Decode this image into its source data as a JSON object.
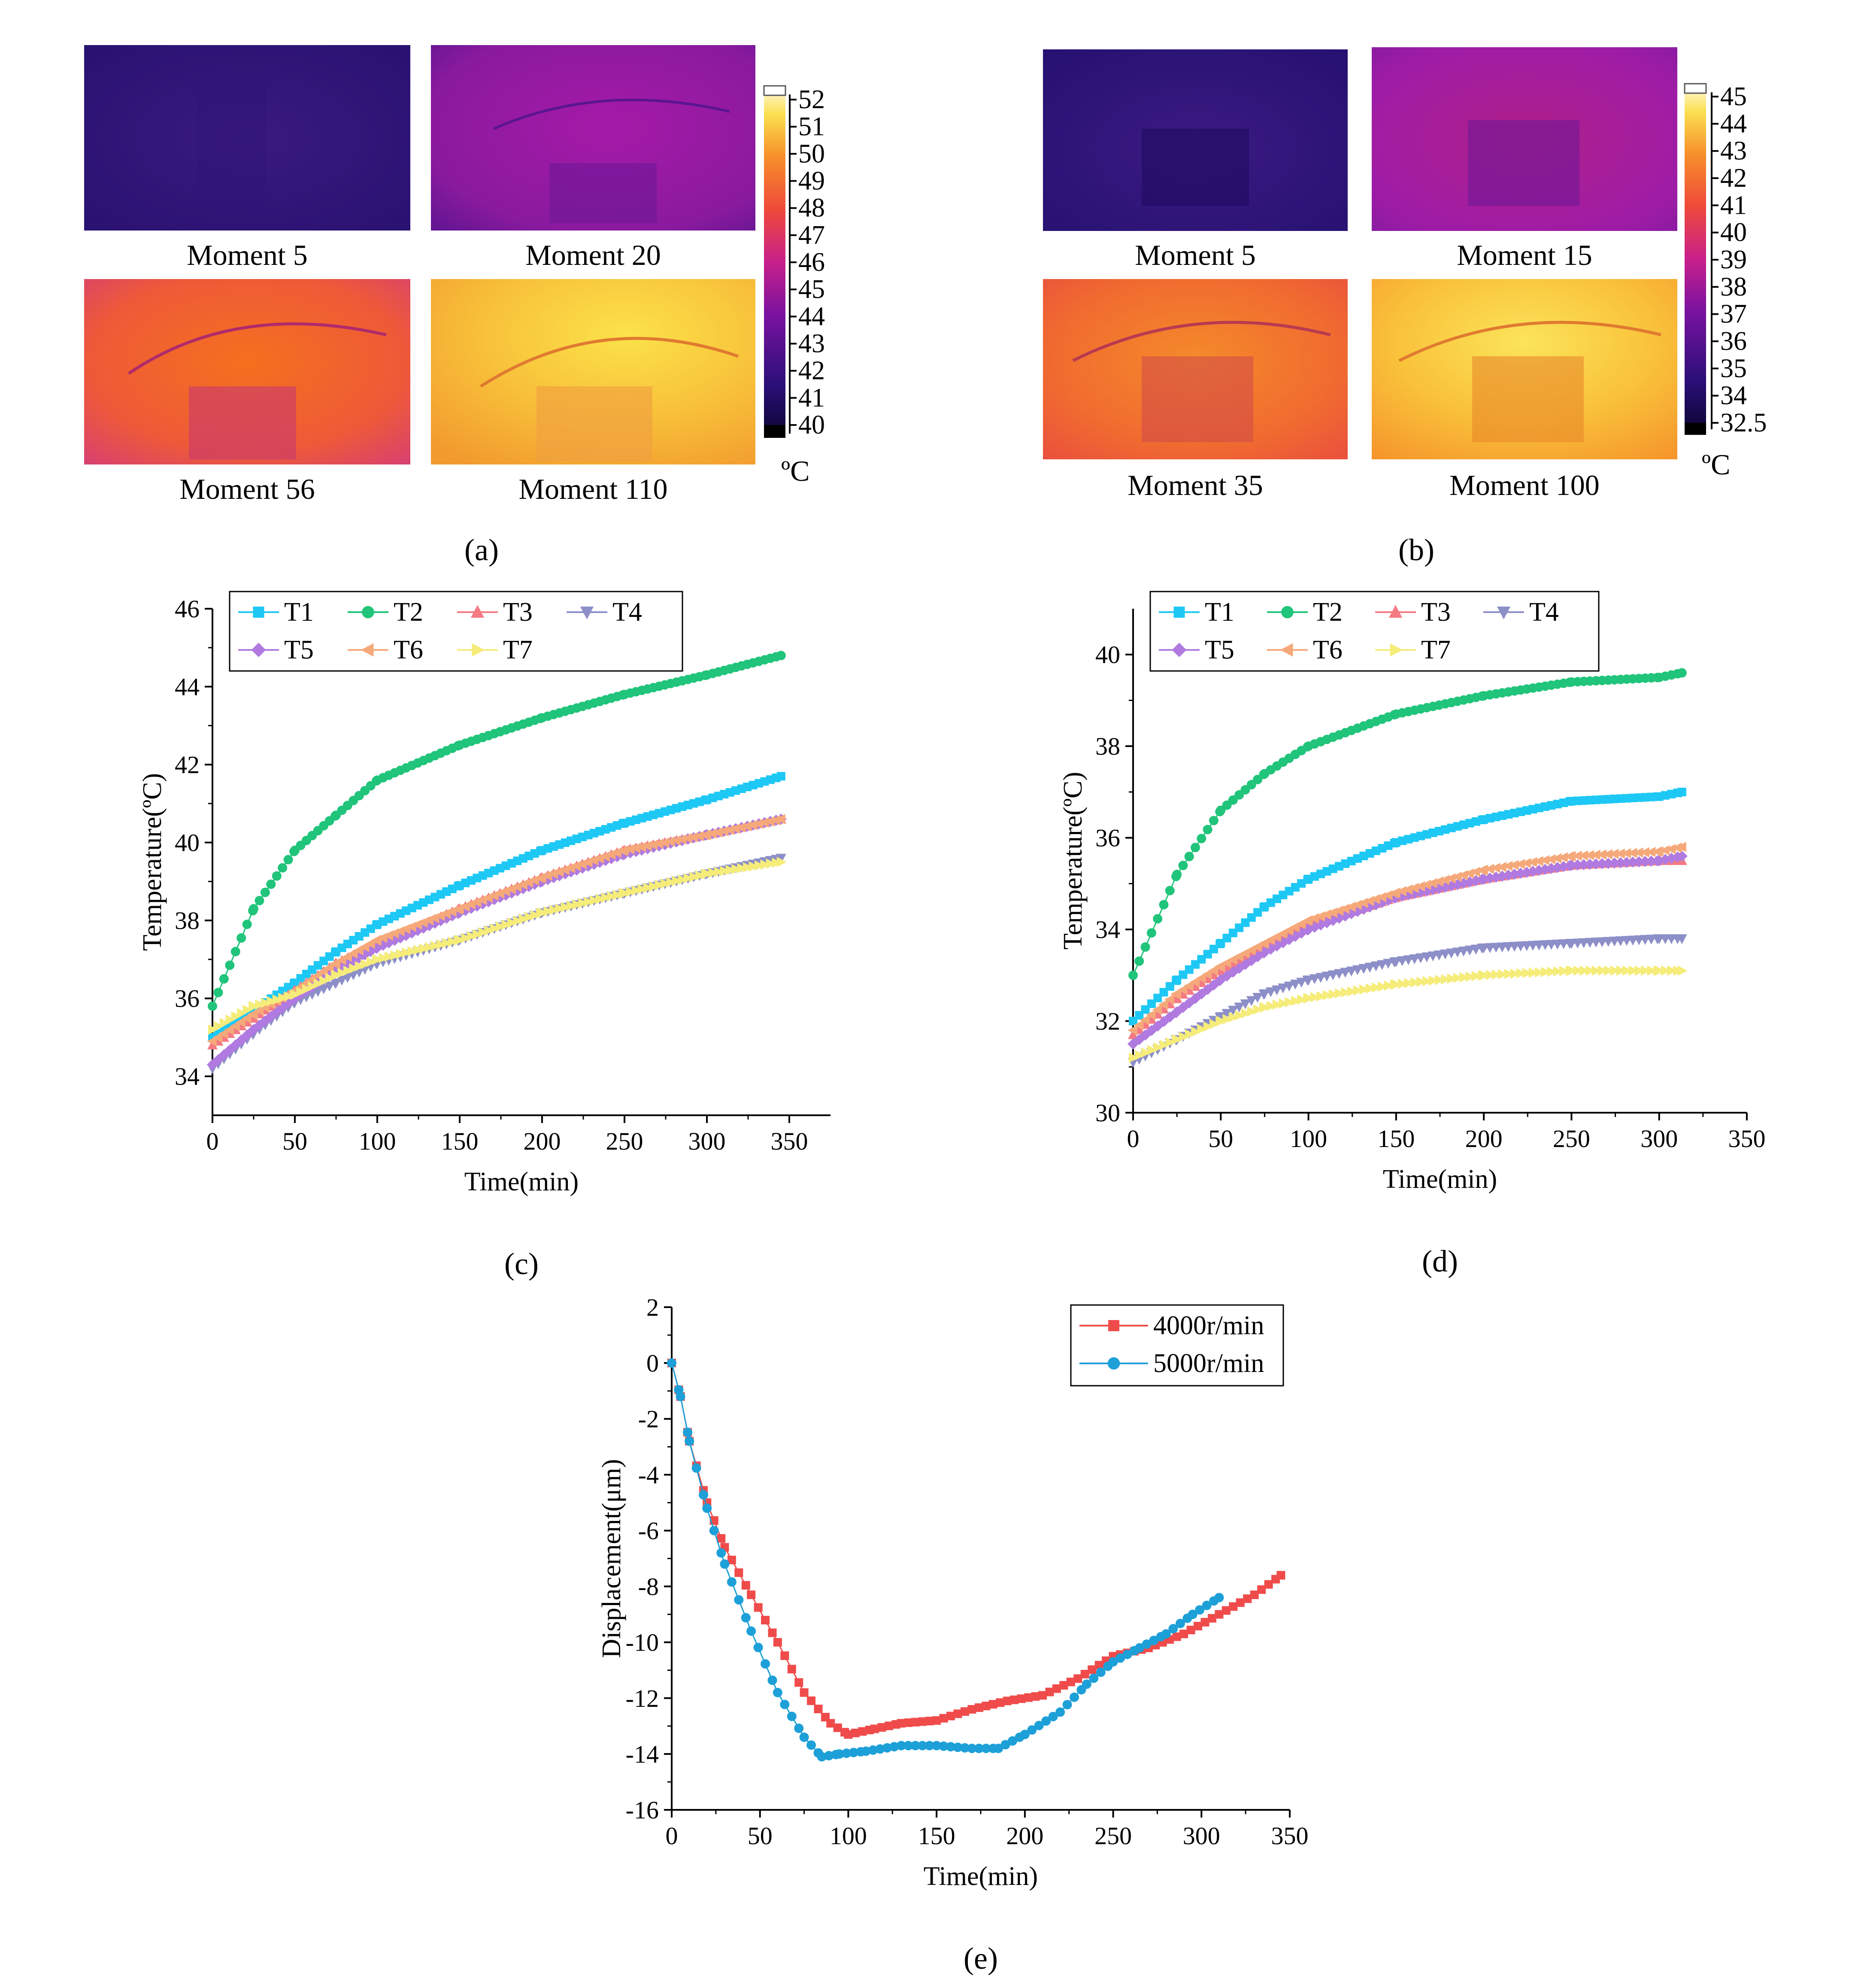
{
  "thermal_a": {
    "panel_label": "(a)",
    "captions": [
      "Moment  5",
      "Moment 20",
      "Moment 56",
      "Moment 110"
    ],
    "colorbar_ticks": [
      "52",
      "51",
      "50",
      "49",
      "48",
      "47",
      "46",
      "45",
      "44",
      "43",
      "42",
      "41",
      "40"
    ],
    "unit": "ºC"
  },
  "thermal_b": {
    "panel_label": "(b)",
    "captions": [
      "Moment  5",
      "Moment 15",
      "Moment 35",
      "Moment 100"
    ],
    "colorbar_ticks": [
      "45",
      "44",
      "43",
      "42",
      "41",
      "40",
      "39",
      "38",
      "37",
      "36",
      "35",
      "34",
      "32.5"
    ],
    "unit": "ºC"
  },
  "colors": {
    "T1": "#1ec8f5",
    "T2": "#20c47a",
    "T3": "#f47a84",
    "T4": "#8c8fc8",
    "T5": "#b07ae0",
    "T6": "#f5a97a",
    "T7": "#f5ec7a",
    "rpm4000": "#f04b4b",
    "rpm5000": "#1da0d8"
  },
  "chart_data": [
    {
      "id": "c",
      "panel_label": "(c)",
      "type": "line",
      "xlabel": "Time(min)",
      "ylabel": "Temperature(ºC)",
      "xlim": [
        0,
        375
      ],
      "ylim": [
        33,
        46
      ],
      "xticks": [
        0,
        50,
        100,
        150,
        200,
        250,
        300,
        350
      ],
      "yticks": [
        34,
        36,
        38,
        40,
        42,
        44,
        46
      ],
      "legend_position": "top-left",
      "x": [
        0,
        25,
        50,
        75,
        100,
        150,
        200,
        250,
        300,
        345
      ],
      "series": [
        {
          "name": "T1",
          "marker": "square",
          "values": [
            35.0,
            35.7,
            36.4,
            37.2,
            37.9,
            38.9,
            39.8,
            40.5,
            41.1,
            41.7
          ]
        },
        {
          "name": "T2",
          "marker": "circle",
          "values": [
            35.8,
            38.3,
            39.8,
            40.7,
            41.6,
            42.5,
            43.2,
            43.8,
            44.3,
            44.8
          ]
        },
        {
          "name": "T3",
          "marker": "triangle-up",
          "values": [
            34.8,
            35.5,
            36.2,
            36.9,
            37.4,
            38.3,
            39.1,
            39.8,
            40.2,
            40.6
          ]
        },
        {
          "name": "T4",
          "marker": "triangle-down",
          "values": [
            34.2,
            35.1,
            35.9,
            36.4,
            36.9,
            37.5,
            38.2,
            38.7,
            39.2,
            39.6
          ]
        },
        {
          "name": "T5",
          "marker": "diamond",
          "values": [
            34.3,
            35.2,
            36.0,
            36.7,
            37.3,
            38.2,
            39.0,
            39.7,
            40.2,
            40.6
          ]
        },
        {
          "name": "T6",
          "marker": "triangle-left",
          "values": [
            34.9,
            35.6,
            36.2,
            36.9,
            37.5,
            38.3,
            39.1,
            39.8,
            40.2,
            40.6
          ]
        },
        {
          "name": "T7",
          "marker": "triangle-right",
          "values": [
            35.2,
            35.8,
            36.1,
            36.6,
            37.0,
            37.5,
            38.2,
            38.7,
            39.2,
            39.5
          ]
        }
      ]
    },
    {
      "id": "d",
      "panel_label": "(d)",
      "type": "line",
      "xlabel": "Time(min)",
      "ylabel": "Temperature(ºC)",
      "xlim": [
        0,
        350
      ],
      "ylim": [
        30,
        41
      ],
      "xticks": [
        0,
        50,
        100,
        150,
        200,
        250,
        300,
        350
      ],
      "yticks": [
        30,
        32,
        34,
        36,
        38,
        40
      ],
      "legend_position": "top-left",
      "x": [
        0,
        25,
        50,
        75,
        100,
        150,
        200,
        250,
        300,
        313
      ],
      "series": [
        {
          "name": "T1",
          "marker": "square",
          "values": [
            32.0,
            32.9,
            33.7,
            34.5,
            35.1,
            35.9,
            36.4,
            36.8,
            36.9,
            37.0
          ]
        },
        {
          "name": "T2",
          "marker": "circle",
          "values": [
            33.0,
            35.2,
            36.6,
            37.4,
            38.0,
            38.7,
            39.1,
            39.4,
            39.5,
            39.6
          ]
        },
        {
          "name": "T3",
          "marker": "triangle-up",
          "values": [
            31.7,
            32.5,
            33.1,
            33.6,
            34.1,
            34.7,
            35.1,
            35.4,
            35.5,
            35.5
          ]
        },
        {
          "name": "T4",
          "marker": "triangle-down",
          "values": [
            31.1,
            31.6,
            32.1,
            32.6,
            32.9,
            33.3,
            33.6,
            33.7,
            33.8,
            33.8
          ]
        },
        {
          "name": "T5",
          "marker": "diamond",
          "values": [
            31.5,
            32.2,
            32.9,
            33.5,
            34.0,
            34.7,
            35.1,
            35.4,
            35.5,
            35.6
          ]
        },
        {
          "name": "T6",
          "marker": "triangle-left",
          "values": [
            31.8,
            32.6,
            33.2,
            33.7,
            34.2,
            34.8,
            35.3,
            35.6,
            35.7,
            35.8
          ]
        },
        {
          "name": "T7",
          "marker": "triangle-right",
          "values": [
            31.2,
            31.6,
            32.0,
            32.3,
            32.5,
            32.8,
            33.0,
            33.1,
            33.1,
            33.1
          ]
        }
      ]
    },
    {
      "id": "e",
      "panel_label": "(e)",
      "type": "line",
      "xlabel": "Time(min)",
      "ylabel": "Displacement(μm)",
      "xlim": [
        0,
        350
      ],
      "ylim": [
        -16,
        2
      ],
      "xticks": [
        0,
        50,
        100,
        150,
        200,
        250,
        300,
        350
      ],
      "yticks": [
        2,
        0,
        -2,
        -4,
        -6,
        -8,
        -10,
        -12,
        -14,
        -16
      ],
      "legend_position": "top-right",
      "series": [
        {
          "name": "4000r/min",
          "marker": "square",
          "x": [
            0,
            5,
            10,
            20,
            30,
            45,
            60,
            75,
            90,
            100,
            115,
            130,
            150,
            170,
            190,
            210,
            230,
            250,
            270,
            290,
            310,
            330,
            345
          ],
          "values": [
            0,
            -1.2,
            -2.8,
            -5.0,
            -6.6,
            -8.3,
            -10.0,
            -11.8,
            -12.9,
            -13.3,
            -13.1,
            -12.9,
            -12.8,
            -12.4,
            -12.1,
            -11.9,
            -11.3,
            -10.5,
            -10.2,
            -9.7,
            -9.0,
            -8.3,
            -7.6
          ]
        },
        {
          "name": "5000r/min",
          "marker": "circle",
          "x": [
            0,
            5,
            10,
            20,
            30,
            45,
            60,
            75,
            85,
            95,
            110,
            130,
            150,
            170,
            185,
            200,
            220,
            235,
            250,
            265,
            280,
            295,
            310
          ],
          "values": [
            0,
            -1.2,
            -2.8,
            -5.2,
            -7.2,
            -9.6,
            -11.8,
            -13.4,
            -14.1,
            -14.0,
            -13.9,
            -13.7,
            -13.7,
            -13.8,
            -13.8,
            -13.3,
            -12.5,
            -11.5,
            -10.7,
            -10.2,
            -9.7,
            -9.0,
            -8.4
          ]
        }
      ]
    }
  ]
}
